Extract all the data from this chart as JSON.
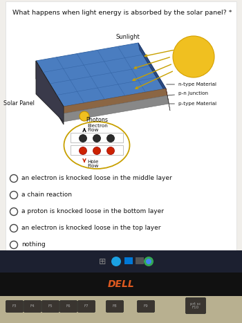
{
  "title": "What happens when light energy is absorbed by the solar panel? *",
  "choices": [
    "an electron is knocked loose in the middle layer",
    "a chain reaction",
    "a proton is knocked loose in the bottom layer",
    "an electron is knocked loose in the top layer",
    "nothing"
  ],
  "bg_outer": "#c8c4be",
  "bg_screen": "#f0eeea",
  "white_card": "#ffffff",
  "panel_blue_top": "#4a7dc0",
  "panel_blue_grid": "#3060a0",
  "panel_side_dark": "#2a3a5a",
  "panel_mid_brown": "#8B6644",
  "panel_bot_gray": "#888888",
  "sun_color": "#f0c020",
  "arrow_gold": "#c8a000",
  "electron_dark": "#2a2a2a",
  "hole_red": "#cc2200",
  "oval_gold": "#c8a000",
  "label_dark": "#222222",
  "taskbar_bg": "#1a1e2e",
  "laptop_body": "#111111",
  "keyboard_bg": "#c8c0a8",
  "dell_text": "#e05a20"
}
